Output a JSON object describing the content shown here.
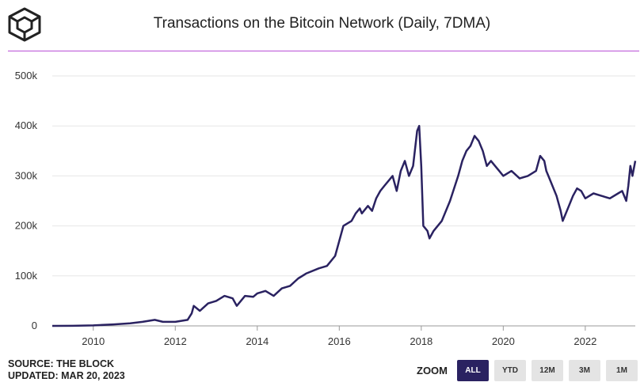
{
  "header": {
    "logo": "the-block-cube-logo",
    "title": "Transactions on the Bitcoin Network (Daily, 7DMA)",
    "accent_color": "#b94fd6"
  },
  "footer": {
    "source": "SOURCE: THE BLOCK",
    "updated": "UPDATED: MAR 20, 2023"
  },
  "zoom": {
    "label": "ZOOM",
    "buttons": [
      {
        "label": "ALL",
        "active": true
      },
      {
        "label": "YTD",
        "active": false
      },
      {
        "label": "12M",
        "active": false
      },
      {
        "label": "3M",
        "active": false
      },
      {
        "label": "1M",
        "active": false
      }
    ]
  },
  "chart_data": {
    "type": "line",
    "title": "Transactions on the Bitcoin Network (Daily, 7DMA)",
    "xlabel": "",
    "ylabel": "",
    "ylim": [
      0,
      500000
    ],
    "xlim": [
      2009.0,
      2023.22
    ],
    "y_ticks": [
      0,
      100000,
      200000,
      300000,
      400000,
      500000
    ],
    "y_tick_labels": [
      "0",
      "100k",
      "200k",
      "300k",
      "400k",
      "500k"
    ],
    "x_ticks": [
      2010,
      2012,
      2014,
      2016,
      2018,
      2020,
      2022
    ],
    "x_tick_labels": [
      "2010",
      "2012",
      "2014",
      "2016",
      "2018",
      "2020",
      "2022"
    ],
    "grid": true,
    "line_color": "#2a2261",
    "series": [
      {
        "x": [
          2009.0,
          2009.5,
          2010.0,
          2010.5,
          2010.9,
          2011.2,
          2011.5,
          2011.7,
          2012.0,
          2012.3,
          2012.4,
          2012.45,
          2012.6,
          2012.8,
          2013.0,
          2013.2,
          2013.4,
          2013.5,
          2013.7,
          2013.9,
          2014.0,
          2014.2,
          2014.4,
          2014.6,
          2014.8,
          2015.0,
          2015.2,
          2015.5,
          2015.7,
          2015.9,
          2016.0,
          2016.1,
          2016.3,
          2016.4,
          2016.5,
          2016.55,
          2016.7,
          2016.8,
          2016.9,
          2017.0,
          2017.1,
          2017.3,
          2017.4,
          2017.5,
          2017.6,
          2017.7,
          2017.8,
          2017.9,
          2017.95,
          2018.0,
          2018.05,
          2018.15,
          2018.2,
          2018.3,
          2018.5,
          2018.7,
          2018.9,
          2019.0,
          2019.1,
          2019.2,
          2019.3,
          2019.4,
          2019.5,
          2019.6,
          2019.7,
          2019.8,
          2019.9,
          2020.0,
          2020.2,
          2020.4,
          2020.6,
          2020.8,
          2020.9,
          2021.0,
          2021.05,
          2021.1,
          2021.3,
          2021.4,
          2021.45,
          2021.5,
          2021.6,
          2021.7,
          2021.8,
          2021.9,
          2022.0,
          2022.2,
          2022.4,
          2022.6,
          2022.8,
          2022.9,
          2023.0,
          2023.05,
          2023.1,
          2023.15,
          2023.22
        ],
        "y": [
          0,
          200,
          1000,
          3000,
          5000,
          8000,
          12000,
          8000,
          8000,
          12000,
          25000,
          40000,
          30000,
          45000,
          50000,
          60000,
          55000,
          40000,
          60000,
          58000,
          65000,
          70000,
          60000,
          75000,
          80000,
          95000,
          105000,
          115000,
          120000,
          140000,
          170000,
          200000,
          210000,
          225000,
          235000,
          225000,
          240000,
          230000,
          255000,
          270000,
          280000,
          300000,
          270000,
          310000,
          330000,
          300000,
          320000,
          390000,
          400000,
          320000,
          200000,
          190000,
          175000,
          190000,
          210000,
          250000,
          300000,
          330000,
          350000,
          360000,
          380000,
          370000,
          350000,
          320000,
          330000,
          320000,
          310000,
          300000,
          310000,
          295000,
          300000,
          310000,
          340000,
          330000,
          310000,
          300000,
          260000,
          230000,
          210000,
          220000,
          240000,
          260000,
          275000,
          270000,
          255000,
          265000,
          260000,
          255000,
          265000,
          270000,
          250000,
          280000,
          320000,
          300000,
          330000
        ]
      }
    ]
  }
}
